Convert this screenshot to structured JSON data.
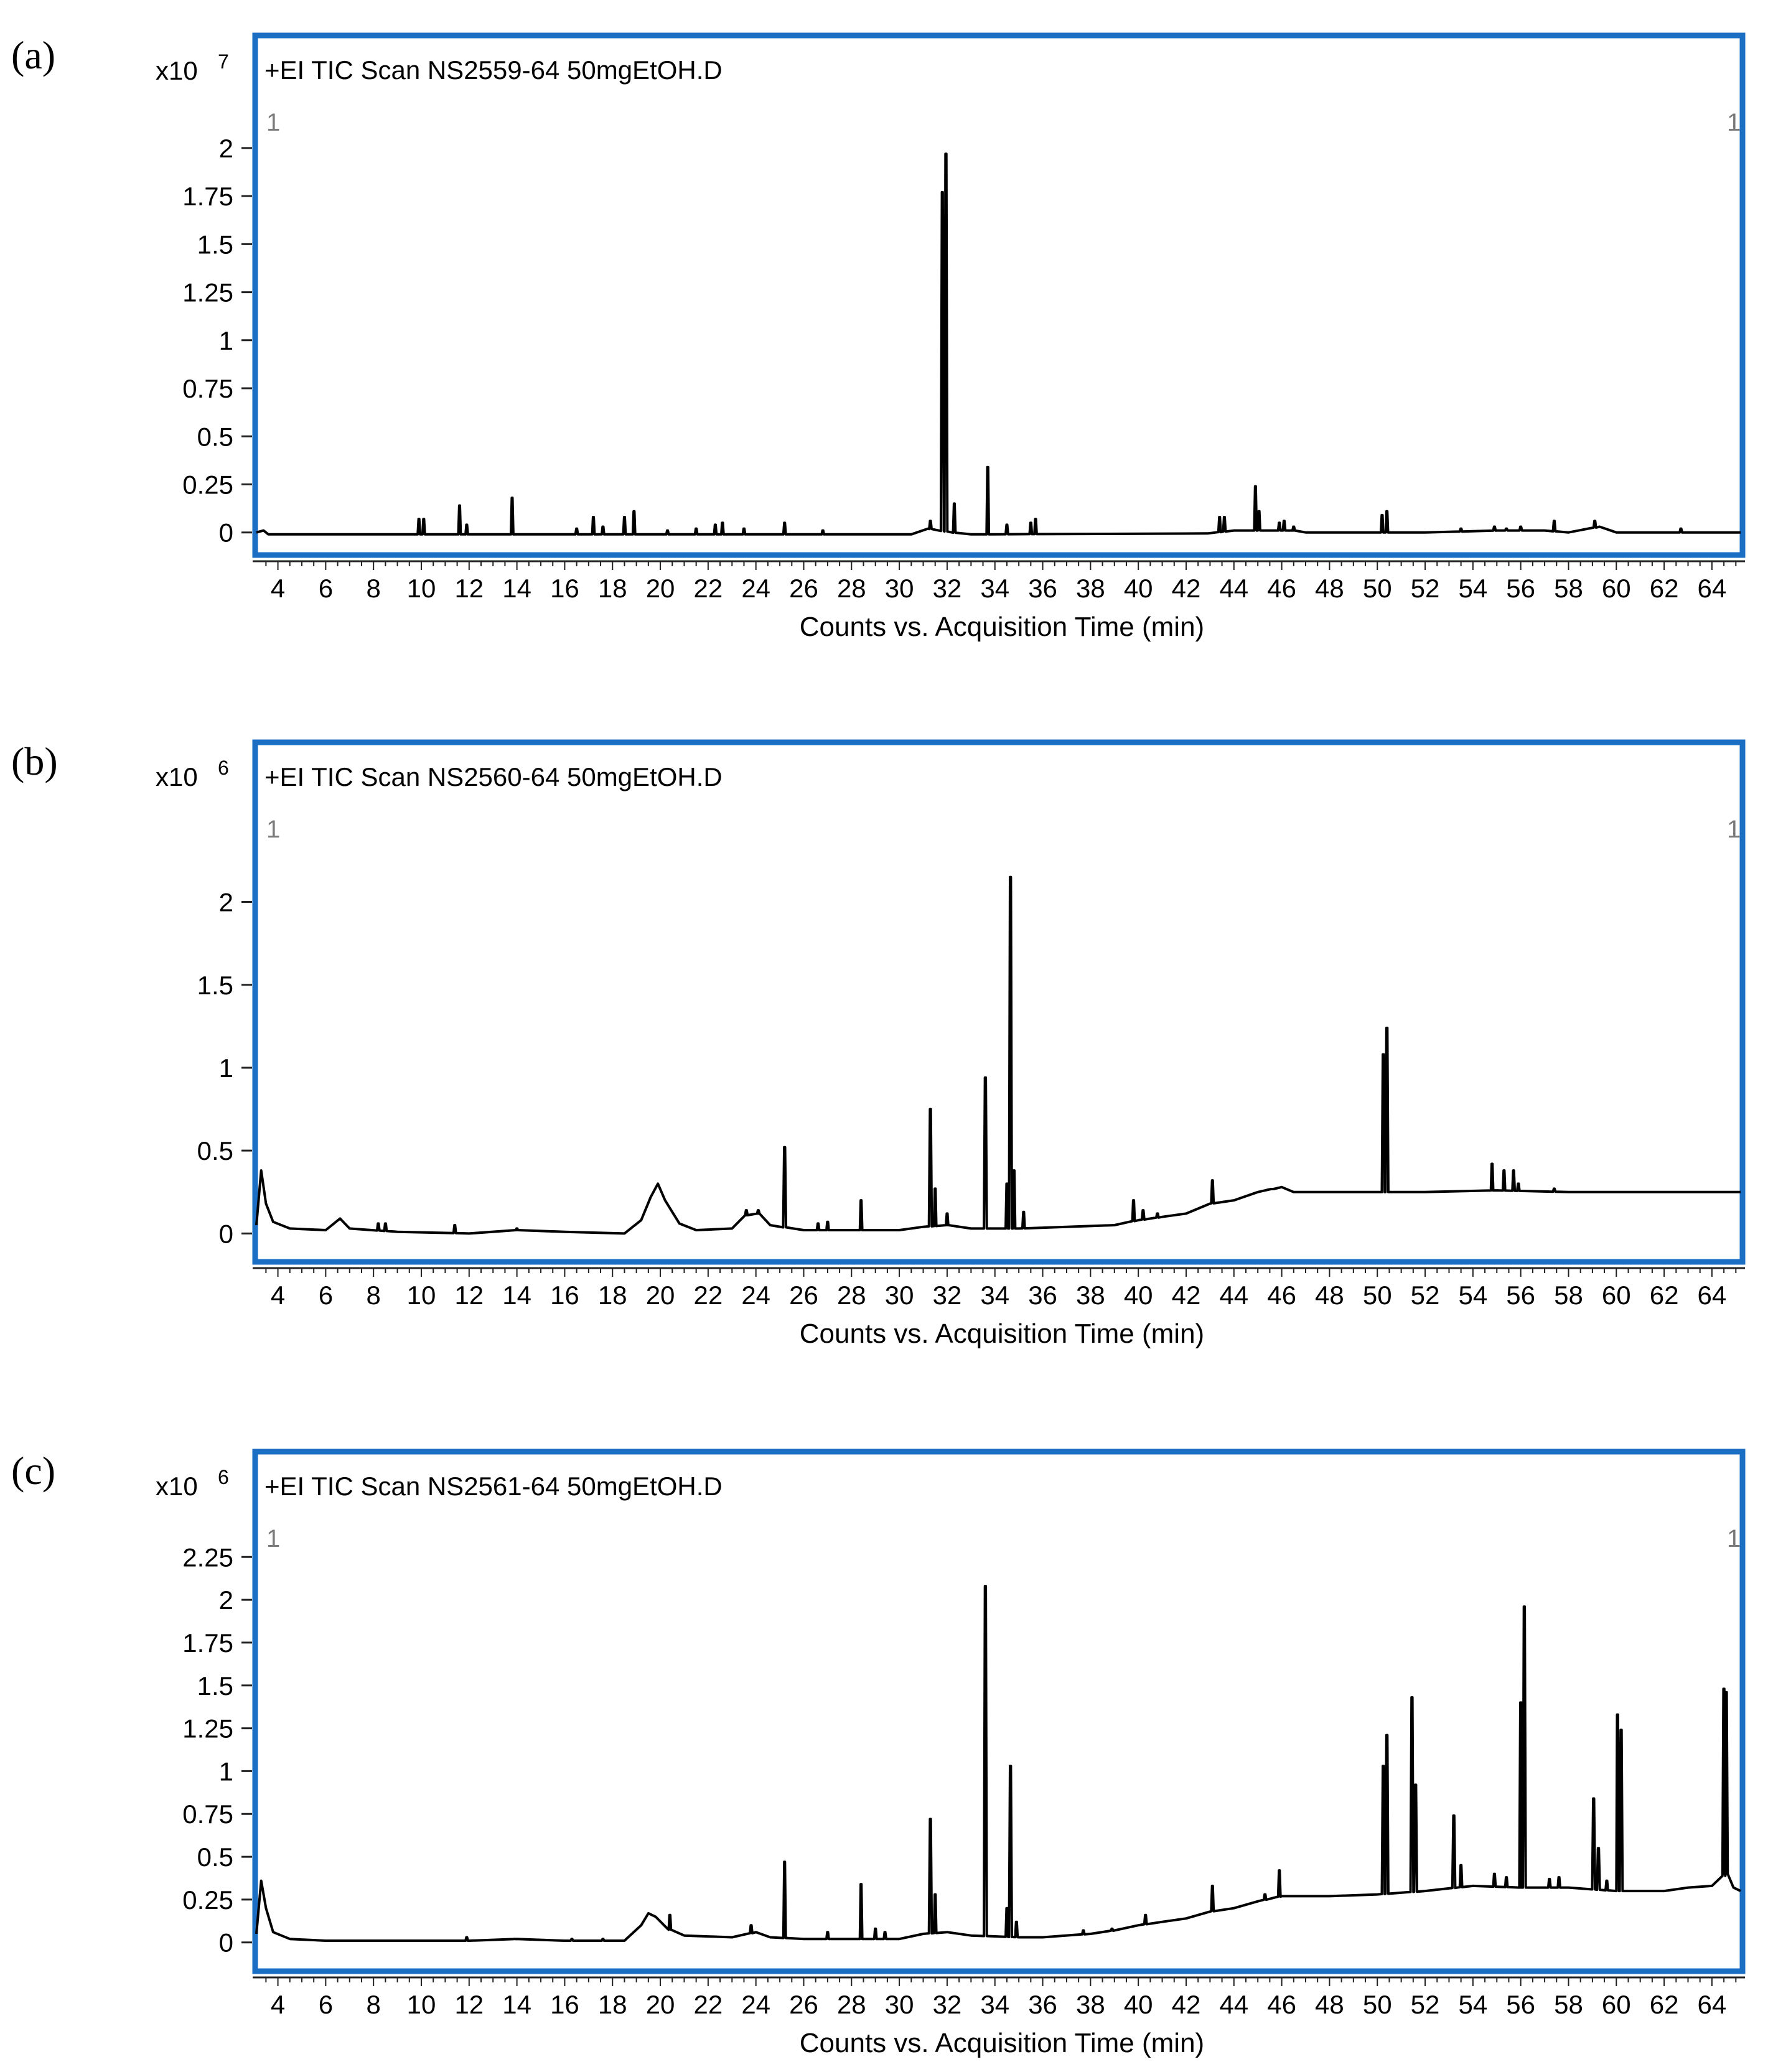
{
  "panels": [
    {
      "label": "(a)",
      "exponent_prefix": "x10",
      "exponent": "7",
      "header": "+EI TIC Scan NS2559-64 50mgEtOH.D",
      "corner_left": "1",
      "corner_right": "1",
      "xlabel": "Counts vs. Acquisition Time (min)"
    },
    {
      "label": "(b)",
      "exponent_prefix": "x10",
      "exponent": "6",
      "header": "+EI TIC Scan NS2560-64 50mgEtOH.D",
      "corner_left": "1",
      "corner_right": "1",
      "xlabel": "Counts vs. Acquisition Time (min)"
    },
    {
      "label": "(c)",
      "exponent_prefix": "x10",
      "exponent": "6",
      "header": "+EI TIC Scan NS2561-64 50mgEtOH.D",
      "corner_left": "1",
      "corner_right": "1",
      "xlabel": "Counts vs. Acquisition Time (min)"
    }
  ],
  "colors": {
    "frame": "#1a6fc4",
    "trace": "#000000",
    "corner": "#7a7a7a"
  },
  "chart_data": [
    {
      "type": "line",
      "title": "+EI TIC Scan NS2559-64 50mgEtOH.D",
      "xlabel": "Counts vs. Acquisition Time (min)",
      "ylabel": "x10 7",
      "xlim": [
        3.1,
        65.2
      ],
      "ylim": [
        -0.03,
        2.1
      ],
      "xticks": [
        "4",
        "6",
        "8",
        "10",
        "12",
        "14",
        "16",
        "18",
        "20",
        "22",
        "24",
        "26",
        "28",
        "30",
        "32",
        "34",
        "36",
        "38",
        "40",
        "42",
        "44",
        "46",
        "48",
        "50",
        "52",
        "54",
        "56",
        "58",
        "60",
        "62",
        "64"
      ],
      "yticks": [
        0,
        0.25,
        0.5,
        0.75,
        1,
        1.25,
        1.5,
        1.75,
        2
      ],
      "ytick_labels": [
        "0",
        "0.25",
        "0.5",
        "0.75",
        "1",
        "1.25",
        "1.5",
        "1.75",
        "2"
      ],
      "baseline": [
        [
          3.1,
          0
        ],
        [
          3.4,
          0.01
        ],
        [
          3.6,
          -0.01
        ],
        [
          30.5,
          -0.01
        ],
        [
          31.2,
          0.02
        ],
        [
          32.2,
          0.0
        ],
        [
          33,
          -0.01
        ],
        [
          42.9,
          -0.005
        ],
        [
          44,
          0.01
        ],
        [
          45.4,
          0.01
        ],
        [
          46.5,
          0.01
        ],
        [
          47,
          0.0
        ],
        [
          52,
          0.0
        ],
        [
          55,
          0.01
        ],
        [
          57,
          0.01
        ],
        [
          58,
          0.0
        ],
        [
          59.3,
          0.03
        ],
        [
          60,
          0.0
        ],
        [
          65.2,
          0.0
        ]
      ],
      "peaks": [
        [
          9.9,
          0.07
        ],
        [
          10.1,
          0.07
        ],
        [
          11.6,
          0.14
        ],
        [
          11.9,
          0.04
        ],
        [
          13.8,
          0.18
        ],
        [
          16.5,
          0.02
        ],
        [
          17.2,
          0.08
        ],
        [
          17.6,
          0.03
        ],
        [
          18.5,
          0.08
        ],
        [
          18.9,
          0.11
        ],
        [
          20.3,
          0.01
        ],
        [
          21.5,
          0.02
        ],
        [
          22.3,
          0.04
        ],
        [
          22.6,
          0.05
        ],
        [
          23.5,
          0.02
        ],
        [
          25.2,
          0.05
        ],
        [
          26.8,
          0.01
        ],
        [
          31.3,
          0.06
        ],
        [
          31.8,
          1.77
        ],
        [
          31.95,
          1.97
        ],
        [
          32.3,
          0.15
        ],
        [
          33.7,
          0.34
        ],
        [
          34.5,
          0.04
        ],
        [
          35.5,
          0.05
        ],
        [
          35.7,
          0.07
        ],
        [
          43.4,
          0.08
        ],
        [
          43.6,
          0.08
        ],
        [
          44.9,
          0.24
        ],
        [
          45.05,
          0.11
        ],
        [
          45.9,
          0.05
        ],
        [
          46.1,
          0.06
        ],
        [
          46.5,
          0.03
        ],
        [
          50.2,
          0.09
        ],
        [
          50.4,
          0.11
        ],
        [
          53.5,
          0.02
        ],
        [
          54.9,
          0.03
        ],
        [
          55.4,
          0.02
        ],
        [
          56.0,
          0.03
        ],
        [
          57.4,
          0.06
        ],
        [
          59.1,
          0.06
        ],
        [
          62.7,
          0.02
        ]
      ]
    },
    {
      "type": "line",
      "title": "+EI TIC Scan NS2560-64 50mgEtOH.D",
      "xlabel": "Counts vs. Acquisition Time (min)",
      "ylabel": "x10 6",
      "xlim": [
        3.1,
        65.2
      ],
      "ylim": [
        -0.07,
        2.4
      ],
      "xticks": [
        "4",
        "6",
        "8",
        "10",
        "12",
        "14",
        "16",
        "18",
        "20",
        "22",
        "24",
        "26",
        "28",
        "30",
        "32",
        "34",
        "36",
        "38",
        "40",
        "42",
        "44",
        "46",
        "48",
        "50",
        "52",
        "54",
        "56",
        "58",
        "60",
        "62",
        "64"
      ],
      "yticks": [
        0,
        0.5,
        1,
        1.5,
        2
      ],
      "ytick_labels": [
        "0",
        "0.5",
        "1",
        "1.5",
        "2"
      ],
      "baseline": [
        [
          3.1,
          0.05
        ],
        [
          3.3,
          0.38
        ],
        [
          3.5,
          0.18
        ],
        [
          3.8,
          0.07
        ],
        [
          4.5,
          0.03
        ],
        [
          6.0,
          0.02
        ],
        [
          6.6,
          0.09
        ],
        [
          7.0,
          0.03
        ],
        [
          9,
          0.01
        ],
        [
          12,
          0.0
        ],
        [
          14,
          0.02
        ],
        [
          16,
          0.01
        ],
        [
          18.5,
          0.0
        ],
        [
          19.2,
          0.08
        ],
        [
          19.6,
          0.22
        ],
        [
          19.9,
          0.3
        ],
        [
          20.2,
          0.2
        ],
        [
          20.8,
          0.06
        ],
        [
          21.5,
          0.02
        ],
        [
          23,
          0.03
        ],
        [
          23.6,
          0.11
        ],
        [
          24.1,
          0.12
        ],
        [
          24.6,
          0.05
        ],
        [
          26,
          0.02
        ],
        [
          28,
          0.02
        ],
        [
          30,
          0.02
        ],
        [
          31,
          0.04
        ],
        [
          32,
          0.05
        ],
        [
          33,
          0.03
        ],
        [
          35,
          0.03
        ],
        [
          37,
          0.04
        ],
        [
          39,
          0.05
        ],
        [
          40,
          0.08
        ],
        [
          41,
          0.1
        ],
        [
          42,
          0.12
        ],
        [
          43,
          0.18
        ],
        [
          44,
          0.2
        ],
        [
          45,
          0.25
        ],
        [
          46,
          0.28
        ],
        [
          46.5,
          0.25
        ],
        [
          50,
          0.25
        ],
        [
          52,
          0.25
        ],
        [
          55,
          0.26
        ],
        [
          58,
          0.25
        ],
        [
          60,
          0.25
        ],
        [
          65.2,
          0.25
        ]
      ],
      "peaks": [
        [
          8.2,
          0.06
        ],
        [
          8.5,
          0.06
        ],
        [
          11.4,
          0.05
        ],
        [
          14,
          0.03
        ],
        [
          23.6,
          0.14
        ],
        [
          24.1,
          0.14
        ],
        [
          25.2,
          0.52
        ],
        [
          26.6,
          0.06
        ],
        [
          27.0,
          0.07
        ],
        [
          28.4,
          0.2
        ],
        [
          31.3,
          0.75
        ],
        [
          31.5,
          0.27
        ],
        [
          32.0,
          0.12
        ],
        [
          33.6,
          0.94
        ],
        [
          34.5,
          0.3
        ],
        [
          34.65,
          2.15
        ],
        [
          34.8,
          0.38
        ],
        [
          35.2,
          0.13
        ],
        [
          39.8,
          0.2
        ],
        [
          40.2,
          0.14
        ],
        [
          40.8,
          0.12
        ],
        [
          43.1,
          0.32
        ],
        [
          45.6,
          0.26
        ],
        [
          50.25,
          1.08
        ],
        [
          50.4,
          1.24
        ],
        [
          54.8,
          0.42
        ],
        [
          55.3,
          0.38
        ],
        [
          55.7,
          0.38
        ],
        [
          55.9,
          0.3
        ],
        [
          57.4,
          0.27
        ]
      ]
    },
    {
      "type": "line",
      "title": "+EI TIC Scan NS2561-64 50mgEtOH.D",
      "xlabel": "Counts vs. Acquisition Time (min)",
      "ylabel": "x10 6",
      "xlim": [
        3.1,
        65.2
      ],
      "ylim": [
        -0.07,
        2.32
      ],
      "xticks": [
        "4",
        "6",
        "8",
        "10",
        "12",
        "14",
        "16",
        "18",
        "20",
        "22",
        "24",
        "26",
        "28",
        "30",
        "32",
        "34",
        "36",
        "38",
        "40",
        "42",
        "44",
        "46",
        "48",
        "50",
        "52",
        "54",
        "56",
        "58",
        "60",
        "62",
        "64"
      ],
      "yticks": [
        0,
        0.25,
        0.5,
        0.75,
        1,
        1.25,
        1.5,
        1.75,
        2,
        2.25
      ],
      "ytick_labels": [
        "0",
        "0.25",
        "0.5",
        "0.75",
        "1",
        "1.25",
        "1.5",
        "1.75",
        "2",
        "2.25"
      ],
      "baseline": [
        [
          3.1,
          0.05
        ],
        [
          3.3,
          0.36
        ],
        [
          3.5,
          0.2
        ],
        [
          3.8,
          0.06
        ],
        [
          4.5,
          0.02
        ],
        [
          6,
          0.01
        ],
        [
          9,
          0.01
        ],
        [
          12,
          0.01
        ],
        [
          14,
          0.02
        ],
        [
          16,
          0.01
        ],
        [
          18.5,
          0.01
        ],
        [
          19.2,
          0.1
        ],
        [
          19.5,
          0.17
        ],
        [
          19.8,
          0.15
        ],
        [
          20.3,
          0.08
        ],
        [
          21,
          0.04
        ],
        [
          23,
          0.03
        ],
        [
          24,
          0.06
        ],
        [
          24.6,
          0.03
        ],
        [
          26,
          0.02
        ],
        [
          28,
          0.02
        ],
        [
          30,
          0.02
        ],
        [
          31,
          0.05
        ],
        [
          32,
          0.06
        ],
        [
          33,
          0.04
        ],
        [
          35,
          0.03
        ],
        [
          36,
          0.03
        ],
        [
          38,
          0.05
        ],
        [
          39,
          0.07
        ],
        [
          40,
          0.1
        ],
        [
          41,
          0.12
        ],
        [
          42,
          0.14
        ],
        [
          43,
          0.18
        ],
        [
          44,
          0.2
        ],
        [
          45,
          0.24
        ],
        [
          46,
          0.27
        ],
        [
          48,
          0.27
        ],
        [
          50,
          0.28
        ],
        [
          52,
          0.3
        ],
        [
          54,
          0.33
        ],
        [
          56,
          0.32
        ],
        [
          58,
          0.32
        ],
        [
          60,
          0.3
        ],
        [
          62,
          0.3
        ],
        [
          63,
          0.32
        ],
        [
          64,
          0.33
        ],
        [
          64.6,
          0.4
        ],
        [
          64.9,
          0.32
        ],
        [
          65.2,
          0.3
        ]
      ],
      "peaks": [
        [
          11.9,
          0.03
        ],
        [
          13.9,
          0.02
        ],
        [
          16.3,
          0.02
        ],
        [
          17.6,
          0.02
        ],
        [
          20.4,
          0.16
        ],
        [
          23.8,
          0.1
        ],
        [
          25.2,
          0.47
        ],
        [
          27.0,
          0.06
        ],
        [
          28.4,
          0.34
        ],
        [
          29.0,
          0.08
        ],
        [
          29.4,
          0.06
        ],
        [
          31.3,
          0.72
        ],
        [
          31.5,
          0.28
        ],
        [
          33.6,
          2.08
        ],
        [
          34.5,
          0.2
        ],
        [
          34.65,
          1.03
        ],
        [
          34.9,
          0.12
        ],
        [
          37.7,
          0.07
        ],
        [
          38.9,
          0.08
        ],
        [
          40.3,
          0.16
        ],
        [
          43.1,
          0.33
        ],
        [
          45.3,
          0.28
        ],
        [
          45.9,
          0.42
        ],
        [
          50.25,
          1.03
        ],
        [
          50.4,
          1.21
        ],
        [
          51.45,
          1.43
        ],
        [
          51.6,
          0.92
        ],
        [
          53.2,
          0.74
        ],
        [
          53.5,
          0.45
        ],
        [
          54.9,
          0.4
        ],
        [
          55.4,
          0.38
        ],
        [
          56.0,
          1.4
        ],
        [
          56.15,
          1.96
        ],
        [
          57.2,
          0.37
        ],
        [
          57.6,
          0.38
        ],
        [
          59.05,
          0.84
        ],
        [
          59.25,
          0.55
        ],
        [
          59.6,
          0.36
        ],
        [
          60.05,
          1.33
        ],
        [
          60.2,
          1.24
        ],
        [
          64.5,
          1.48
        ],
        [
          64.6,
          1.46
        ]
      ]
    }
  ]
}
